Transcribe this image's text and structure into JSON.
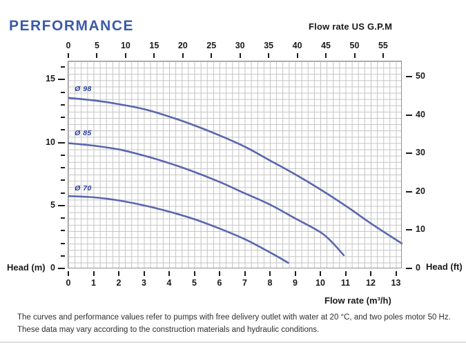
{
  "title": "PERFORMANCE",
  "chart": {
    "top_axis": {
      "label": "Flow rate US G.P.M",
      "ticks": [
        "0",
        "5",
        "10",
        "15",
        "20",
        "25",
        "30",
        "35",
        "40",
        "45",
        "50",
        "55"
      ]
    },
    "bottom_axis": {
      "label": "Flow rate (m³/h)",
      "ticks": [
        "0",
        "1",
        "2",
        "3",
        "4",
        "5",
        "6",
        "7",
        "8",
        "9",
        "10",
        "11",
        "12",
        "13"
      ]
    },
    "left_axis": {
      "label": "Head (m)",
      "labeled_ticks": [
        "0",
        "5",
        "10",
        "15"
      ],
      "minor_tick_step_m": 1,
      "max_tick_m": 16
    },
    "right_axis": {
      "label": "Head (ft)",
      "ticks": [
        "0",
        "10",
        "20",
        "30",
        "40",
        "50"
      ]
    }
  },
  "footnote": {
    "line1": "The curves and performance values refer to pumps with free delivery outlet with water at 20 °C, and two poles motor 50 Hz.",
    "line2": "These data may vary according to the construction materials and hydraulic conditions."
  },
  "colors": {
    "title": "#3c5ba6",
    "curve": "#5a66ad",
    "curve_label": "#2c3e9b",
    "grid": "#c2c2c2",
    "grid_border": "#909090",
    "axis_text": "#1a1a1a"
  },
  "chart_data": {
    "type": "line",
    "title": "PERFORMANCE",
    "xlabel": "Flow rate (m³/h)",
    "xlabel_top": "Flow rate US G.P.M",
    "ylabel_left": "Head (m)",
    "ylabel_right": "Head (ft)",
    "xlim": [
      0,
      13.25
    ],
    "ylim": [
      0,
      16.5
    ],
    "grid": true,
    "legend_position": "inline-curve-labels",
    "series": [
      {
        "name": "Ø 98",
        "label_pos": [
          0.25,
          14.6
        ],
        "points": [
          [
            0,
            13.6
          ],
          [
            1,
            13.4
          ],
          [
            2,
            13.1
          ],
          [
            3,
            12.7
          ],
          [
            4,
            12.1
          ],
          [
            5,
            11.4
          ],
          [
            6,
            10.6
          ],
          [
            7,
            9.7
          ],
          [
            8,
            8.6
          ],
          [
            9,
            7.5
          ],
          [
            10,
            6.3
          ],
          [
            11,
            5.0
          ],
          [
            12,
            3.6
          ],
          [
            13,
            2.3
          ],
          [
            13.2,
            2.05
          ]
        ]
      },
      {
        "name": "Ø 85",
        "label_pos": [
          0.25,
          11.1
        ],
        "points": [
          [
            0,
            10.0
          ],
          [
            1,
            9.8
          ],
          [
            2,
            9.5
          ],
          [
            3,
            9.0
          ],
          [
            4,
            8.4
          ],
          [
            5,
            7.7
          ],
          [
            6,
            6.9
          ],
          [
            7,
            6.0
          ],
          [
            8,
            5.1
          ],
          [
            9,
            4.0
          ],
          [
            10,
            2.9
          ],
          [
            10.5,
            2.0
          ],
          [
            10.9,
            1.1
          ]
        ]
      },
      {
        "name": "Ø 70",
        "label_pos": [
          0.25,
          6.7
        ],
        "points": [
          [
            0,
            5.8
          ],
          [
            1,
            5.7
          ],
          [
            2,
            5.45
          ],
          [
            3,
            5.05
          ],
          [
            4,
            4.55
          ],
          [
            5,
            3.95
          ],
          [
            6,
            3.2
          ],
          [
            7,
            2.35
          ],
          [
            8,
            1.3
          ],
          [
            8.7,
            0.5
          ]
        ]
      }
    ]
  }
}
